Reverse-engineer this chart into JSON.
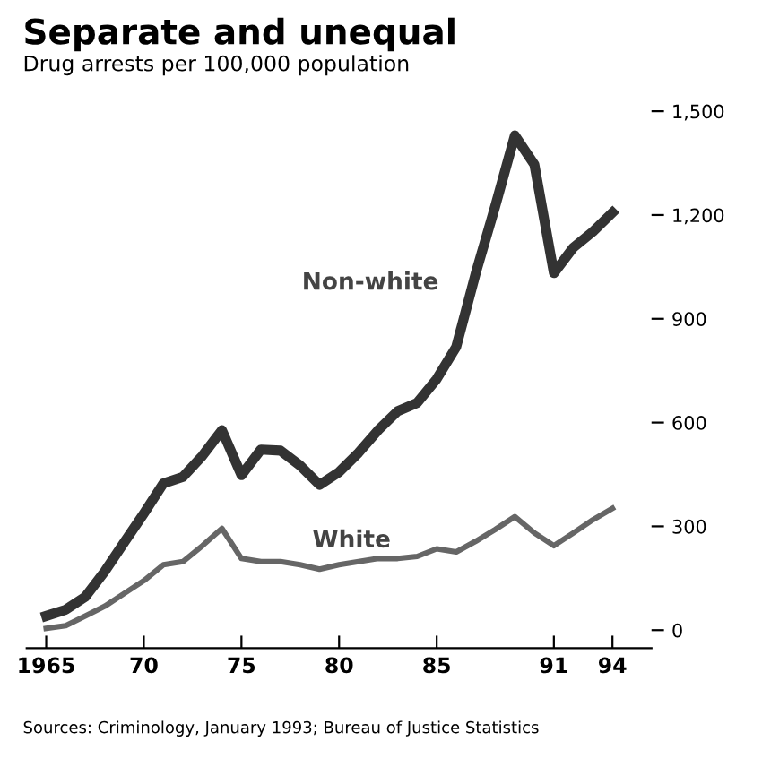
{
  "chart_data": {
    "type": "line",
    "title": "Separate and unequal",
    "subtitle": "Drug arrests per 100,000 population",
    "annotations": [
      "Sources: Criminology, January 1993; Bureau of Justice Statistics"
    ],
    "x": [
      1965,
      1966,
      1967,
      1968,
      1969,
      1970,
      1971,
      1972,
      1973,
      1974,
      1975,
      1976,
      1977,
      1978,
      1979,
      1980,
      1981,
      1982,
      1983,
      1984,
      1985,
      1986,
      1987,
      1988,
      1989,
      1990,
      1991,
      1992,
      1993,
      1994
    ],
    "series": [
      {
        "name": "Non-white",
        "color": "#333333",
        "values": [
          41,
          59,
          96,
          170,
          254,
          337,
          424,
          443,
          504,
          578,
          448,
          522,
          519,
          476,
          420,
          457,
          513,
          578,
          633,
          657,
          726,
          819,
          1032,
          1226,
          1430,
          1346,
          1032,
          1106,
          1152,
          1207
        ]
      },
      {
        "name": "White",
        "color": "#666666",
        "values": [
          5,
          13,
          41,
          69,
          106,
          143,
          189,
          198,
          244,
          294,
          207,
          198,
          198,
          189,
          176,
          189,
          198,
          207,
          207,
          213,
          235,
          226,
          257,
          291,
          328,
          281,
          244,
          281,
          319,
          352
        ]
      }
    ],
    "xlim": [
      1964,
      1996
    ],
    "ylim": [
      -52,
      1500
    ],
    "xticks": [
      {
        "value": 1965,
        "label": "1965"
      },
      {
        "value": 1970,
        "label": "70"
      },
      {
        "value": 1975,
        "label": "75"
      },
      {
        "value": 1980,
        "label": "80"
      },
      {
        "value": 1985,
        "label": "85"
      },
      {
        "value": 1991,
        "label": "91"
      },
      {
        "value": 1994,
        "label": "94"
      }
    ],
    "yticks": [
      0,
      300,
      600,
      900,
      {
        "value": 1200,
        "label": "1,200"
      },
      {
        "value": 1500,
        "label": "1,500"
      }
    ],
    "grid": false,
    "legend": false,
    "marker": "none",
    "line_style": "solid"
  }
}
